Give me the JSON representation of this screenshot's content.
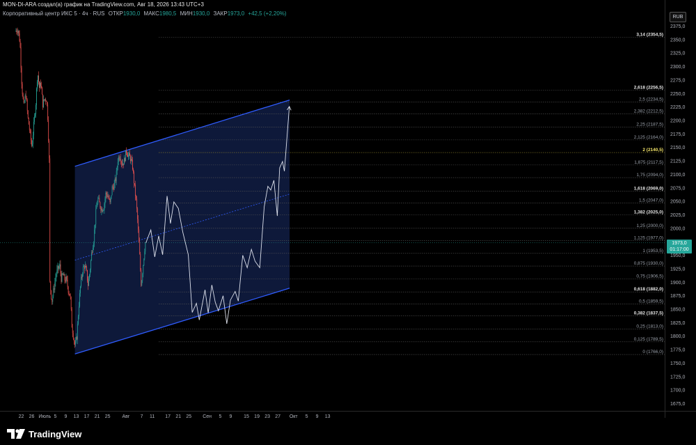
{
  "header": {
    "caption": "MON-DI-ARA создал(а) график на TradingView.com, Авг 18, 2026 13:43 UTC+3"
  },
  "symbol": {
    "name": "Корпоративный центр ИКС 5 · 4ч · RUS",
    "open_label": "ОТКР",
    "open_value": "1930,0",
    "high_label": "МАКС",
    "high_value": "1980,5",
    "low_label": "МИН",
    "low_value": "1930,0",
    "close_label": "ЗАКР",
    "close_value": "1973,0",
    "change": "+42,5 (+2,20%)"
  },
  "currency": "RUB",
  "brand": {
    "name": "TradingView",
    "icon": "tradingview-logo-icon"
  },
  "last_price": {
    "price": "1973,0",
    "countdown": "01:17:00"
  },
  "colors": {
    "up": "#26a69a",
    "down": "#ef5350",
    "channel": "#2f5cff",
    "channel_fill": "#0f1a3d",
    "projection": "#dfe3ee",
    "grid": "#3a3a3a",
    "fib_highlight": "#f5e66a"
  },
  "chart_data": {
    "type": "candlestick",
    "price_axis": {
      "min": 1660,
      "max": 2385,
      "ticks": [
        1675,
        1700,
        1725,
        1750,
        1775,
        1800,
        1825,
        1850,
        1875,
        1900,
        1925,
        1950,
        1975,
        2000,
        2025,
        2050,
        2075,
        2100,
        2125,
        2150,
        2175,
        2200,
        2225,
        2250,
        2275,
        2300,
        2325,
        2350,
        2375
      ],
      "tick_labels": [
        "1675,0",
        "1700,0",
        "1725,0",
        "1750,0",
        "1775,0",
        "1800,0",
        "1825,0",
        "1850,0",
        "1875,0",
        "1900,0",
        "1925,0",
        "1950,0",
        "1975,0",
        "2000,0",
        "2025,0",
        "2050,0",
        "2075,0",
        "2100,0",
        "2125,0",
        "2150,0",
        "2175,0",
        "2200,0",
        "2225,0",
        "2250,0",
        "2275,0",
        "2300,0",
        "2325,0",
        "2350,0",
        "2375,0"
      ]
    },
    "time_axis": {
      "labels": [
        "22",
        "26",
        "Июль",
        "5",
        "9",
        "13",
        "17",
        "21",
        "25",
        "Авг",
        "7",
        "11",
        "17",
        "21",
        "25",
        "Сен",
        "5",
        "9",
        "15",
        "19",
        "23",
        "27",
        "Окт",
        "5",
        "9",
        "13"
      ],
      "day_index": [
        -4,
        0,
        5,
        9,
        13,
        17,
        21,
        25,
        29,
        36,
        42,
        46,
        52,
        56,
        60,
        67,
        72,
        76,
        82,
        86,
        90,
        94,
        100,
        105,
        109,
        113
      ]
    },
    "candles_start_day": -6,
    "candle_anchors": [
      [
        -6.0,
        2365
      ],
      [
        -5.0,
        2370
      ],
      [
        -4.2,
        2345
      ],
      [
        -3.5,
        2265
      ],
      [
        -2.8,
        2225
      ],
      [
        -2.0,
        2250
      ],
      [
        -1.2,
        2205
      ],
      [
        -0.5,
        2180
      ],
      [
        0.3,
        2150
      ],
      [
        1.0,
        2190
      ],
      [
        1.8,
        2230
      ],
      [
        2.5,
        2290
      ],
      [
        3.2,
        2260
      ],
      [
        3.8,
        2270
      ],
      [
        4.5,
        2230
      ],
      [
        5.2,
        2240
      ],
      [
        6.0,
        2240
      ],
      [
        6.5,
        2200
      ],
      [
        7.0,
        2120
      ],
      [
        7.2,
        1900
      ],
      [
        8.0,
        1865
      ],
      [
        8.8,
        1890
      ],
      [
        9.6,
        1915
      ],
      [
        10.3,
        1925
      ],
      [
        11.0,
        1930
      ],
      [
        11.6,
        1905
      ],
      [
        12.2,
        1915
      ],
      [
        12.8,
        1905
      ],
      [
        13.5,
        1905
      ],
      [
        14.3,
        1885
      ],
      [
        15.0,
        1875
      ],
      [
        15.6,
        1820
      ],
      [
        16.2,
        1800
      ],
      [
        16.8,
        1780
      ],
      [
        17.5,
        1800
      ],
      [
        18.3,
        1860
      ],
      [
        19.0,
        1900
      ],
      [
        19.8,
        1925
      ],
      [
        20.5,
        1930
      ],
      [
        21.2,
        1920
      ],
      [
        21.8,
        1895
      ],
      [
        22.5,
        1920
      ],
      [
        23.2,
        1955
      ],
      [
        24.0,
        1980
      ],
      [
        24.8,
        2030
      ],
      [
        25.5,
        2055
      ],
      [
        26.2,
        2045
      ],
      [
        27.0,
        2035
      ],
      [
        27.8,
        2040
      ],
      [
        28.6,
        2065
      ],
      [
        29.4,
        2060
      ],
      [
        30.2,
        2045
      ],
      [
        31.0,
        2075
      ],
      [
        31.8,
        2080
      ],
      [
        32.5,
        2095
      ],
      [
        33.2,
        2130
      ],
      [
        34.0,
        2135
      ],
      [
        34.8,
        2120
      ],
      [
        35.6,
        2125
      ],
      [
        36.4,
        2145
      ],
      [
        37.2,
        2135
      ],
      [
        38.0,
        2130
      ],
      [
        38.8,
        2115
      ],
      [
        39.5,
        2080
      ],
      [
        40.2,
        2050
      ],
      [
        40.8,
        2010
      ],
      [
        41.5,
        1950
      ],
      [
        42.1,
        1895
      ],
      [
        42.8,
        1930
      ],
      [
        43.6,
        1973
      ]
    ],
    "projection_path": [
      [
        43.6,
        1973
      ],
      [
        45.5,
        1997
      ],
      [
        47.0,
        1947
      ],
      [
        48.5,
        1986
      ],
      [
        50.0,
        1951
      ],
      [
        51.7,
        2060
      ],
      [
        53.0,
        2009
      ],
      [
        54.3,
        2049
      ],
      [
        56.0,
        2037
      ],
      [
        57.7,
        1993
      ],
      [
        59.8,
        1951
      ],
      [
        61.3,
        1844
      ],
      [
        62.9,
        1861
      ],
      [
        64.0,
        1830
      ],
      [
        66.2,
        1886
      ],
      [
        67.4,
        1843
      ],
      [
        68.8,
        1895
      ],
      [
        70.1,
        1863
      ],
      [
        71.3,
        1847
      ],
      [
        73.1,
        1875
      ],
      [
        74.5,
        1823
      ],
      [
        75.9,
        1867
      ],
      [
        77.7,
        1883
      ],
      [
        78.9,
        1865
      ],
      [
        80.6,
        1950
      ],
      [
        82.3,
        1927
      ],
      [
        83.9,
        1961
      ],
      [
        85.3,
        1939
      ],
      [
        87.1,
        1927
      ],
      [
        88.8,
        2040
      ],
      [
        90.2,
        2078
      ],
      [
        91.3,
        2071
      ],
      [
        92.5,
        2089
      ],
      [
        93.8,
        2023
      ],
      [
        94.7,
        2112
      ],
      [
        95.8,
        2124
      ],
      [
        96.5,
        2106
      ],
      [
        98.4,
        2226
      ]
    ],
    "fib_levels": [
      {
        "ratio": "0",
        "price": 1766.0,
        "label": "0 (1766,0)",
        "bold": false
      },
      {
        "ratio": "0,125",
        "price": 1789.5,
        "label": "0,125 (1789,5)",
        "bold": false
      },
      {
        "ratio": "0,25",
        "price": 1813.0,
        "label": "0,25 (1813,0)",
        "bold": false
      },
      {
        "ratio": "0,382",
        "price": 1837.5,
        "label": "0,382 (1837,5)",
        "bold": true
      },
      {
        "ratio": "0,5",
        "price": 1859.5,
        "label": "0,5 (1859,5)",
        "bold": false
      },
      {
        "ratio": "0,618",
        "price": 1882.0,
        "label": "0,618 (1882,0)",
        "bold": true
      },
      {
        "ratio": "0,75",
        "price": 1906.5,
        "label": "0,75 (1906,5)",
        "bold": false
      },
      {
        "ratio": "0,875",
        "price": 1930.0,
        "label": "0,875 (1930,0)",
        "bold": false
      },
      {
        "ratio": "1",
        "price": 1953.5,
        "label": "1 (1953,5)",
        "bold": false
      },
      {
        "ratio": "1,125",
        "price": 1977.0,
        "label": "1,125 (1977,0)",
        "bold": false
      },
      {
        "ratio": "1,25",
        "price": 2000.0,
        "label": "1,25 (2000,0)",
        "bold": false
      },
      {
        "ratio": "1,382",
        "price": 2025.0,
        "label": "1,382 (2025,0)",
        "bold": true
      },
      {
        "ratio": "1,5",
        "price": 2047.0,
        "label": "1,5 (2047,0)",
        "bold": false
      },
      {
        "ratio": "1,618",
        "price": 2069.0,
        "label": "1,618 (2069,0)",
        "bold": true
      },
      {
        "ratio": "1,75",
        "price": 2094.0,
        "label": "1,75 (2094,0)",
        "bold": false
      },
      {
        "ratio": "1,875",
        "price": 2117.5,
        "label": "1,875 (2117,5)",
        "bold": false
      },
      {
        "ratio": "2",
        "price": 2140.5,
        "label": "2 (2140,5)",
        "bold": true,
        "highlight": true
      },
      {
        "ratio": "2,125",
        "price": 2164.0,
        "label": "2,125 (2164,0)",
        "bold": false
      },
      {
        "ratio": "2,25",
        "price": 2187.5,
        "label": "2,25 (2187,5)",
        "bold": false
      },
      {
        "ratio": "2,382",
        "price": 2212.5,
        "label": "2,382 (2212,5)",
        "bold": false
      },
      {
        "ratio": "2,5",
        "price": 2234.5,
        "label": "2,5 (2234,5)",
        "bold": false
      },
      {
        "ratio": "2,618",
        "price": 2256.5,
        "label": "2,618 (2256,5)",
        "bold": true
      },
      {
        "ratio": "3,14",
        "price": 2354.5,
        "label": "3,14 (2354,5)",
        "bold": true
      }
    ],
    "channel": {
      "upper": [
        [
          16.5,
          2115
        ],
        [
          98.5,
          2238
        ]
      ],
      "lower": [
        [
          16.5,
          1767
        ],
        [
          98.5,
          1889
        ]
      ]
    }
  }
}
